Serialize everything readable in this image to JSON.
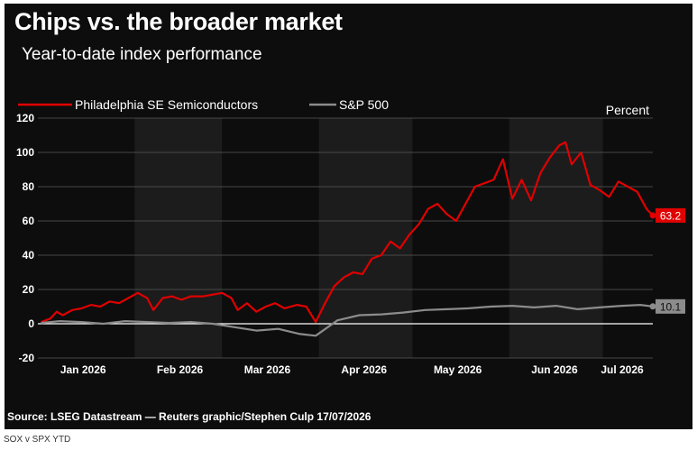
{
  "header": {
    "title": "Chips vs. the broader market",
    "subtitle": "Year-to-date index performance"
  },
  "footer": {
    "source": "Source: LSEG Datastream — Reuters graphic/Stephen Culp 17/07/2026",
    "caption": "SOX v SPX YTD"
  },
  "chart_data": {
    "type": "line",
    "title": "Chips vs. the broader market",
    "subtitle": "Year-to-date index performance",
    "unit_label": "Percent",
    "ylim": [
      -20,
      120
    ],
    "yticks": [
      -20,
      0,
      20,
      40,
      60,
      80,
      100,
      120
    ],
    "xlim": [
      "2026-01-01",
      "2026-07-17"
    ],
    "month_labels": [
      "Jan 2026",
      "Feb 2026",
      "Mar 2026",
      "Apr 2026",
      "May 2026",
      "Jun 2026",
      "Jul 2026"
    ],
    "legend_position": "top-left",
    "grid": true,
    "colors": {
      "background": "#0d0d0d",
      "band": "#1c1c1c",
      "grid": "#5a5a5a",
      "zero_line": "#ffffff",
      "text": "#ffffff"
    },
    "series": [
      {
        "name": "Philadelphia SE Semiconductors",
        "color": "#e00000",
        "end_label": "63.2",
        "points": [
          [
            "2026-01-02",
            1.0
          ],
          [
            "2026-01-05",
            3.0
          ],
          [
            "2026-01-07",
            7.0
          ],
          [
            "2026-01-09",
            5.0
          ],
          [
            "2026-01-12",
            8.0
          ],
          [
            "2026-01-15",
            9.0
          ],
          [
            "2026-01-18",
            11.0
          ],
          [
            "2026-01-21",
            10.0
          ],
          [
            "2026-01-24",
            13.0
          ],
          [
            "2026-01-27",
            12.0
          ],
          [
            "2026-01-30",
            15.0
          ],
          [
            "2026-02-02",
            18.0
          ],
          [
            "2026-02-05",
            15.0
          ],
          [
            "2026-02-07",
            8.0
          ],
          [
            "2026-02-10",
            15.0
          ],
          [
            "2026-02-13",
            16.0
          ],
          [
            "2026-02-16",
            14.0
          ],
          [
            "2026-02-19",
            16.0
          ],
          [
            "2026-02-23",
            16.0
          ],
          [
            "2026-02-26",
            17.0
          ],
          [
            "2026-03-01",
            18.0
          ],
          [
            "2026-03-04",
            15.0
          ],
          [
            "2026-03-06",
            8.0
          ],
          [
            "2026-03-09",
            12.0
          ],
          [
            "2026-03-12",
            7.0
          ],
          [
            "2026-03-15",
            10.0
          ],
          [
            "2026-03-18",
            12.0
          ],
          [
            "2026-03-21",
            9.0
          ],
          [
            "2026-03-25",
            11.0
          ],
          [
            "2026-03-28",
            10.0
          ],
          [
            "2026-03-31",
            1.0
          ],
          [
            "2026-04-03",
            12.0
          ],
          [
            "2026-04-06",
            22.0
          ],
          [
            "2026-04-09",
            27.0
          ],
          [
            "2026-04-12",
            30.0
          ],
          [
            "2026-04-15",
            29.0
          ],
          [
            "2026-04-18",
            38.0
          ],
          [
            "2026-04-21",
            40.0
          ],
          [
            "2026-04-24",
            48.0
          ],
          [
            "2026-04-27",
            44.0
          ],
          [
            "2026-04-30",
            52.0
          ],
          [
            "2026-05-03",
            58.0
          ],
          [
            "2026-05-06",
            67.0
          ],
          [
            "2026-05-09",
            70.0
          ],
          [
            "2026-05-12",
            64.0
          ],
          [
            "2026-05-15",
            60.0
          ],
          [
            "2026-05-18",
            70.0
          ],
          [
            "2026-05-21",
            80.0
          ],
          [
            "2026-05-24",
            82.0
          ],
          [
            "2026-05-27",
            84.0
          ],
          [
            "2026-05-30",
            96.0
          ],
          [
            "2026-06-02",
            73.0
          ],
          [
            "2026-06-05",
            84.0
          ],
          [
            "2026-06-08",
            72.0
          ],
          [
            "2026-06-11",
            88.0
          ],
          [
            "2026-06-14",
            97.0
          ],
          [
            "2026-06-17",
            104.0
          ],
          [
            "2026-06-19",
            106.0
          ],
          [
            "2026-06-21",
            93.0
          ],
          [
            "2026-06-24",
            100.0
          ],
          [
            "2026-06-27",
            81.0
          ],
          [
            "2026-06-30",
            78.0
          ],
          [
            "2026-07-03",
            74.0
          ],
          [
            "2026-07-06",
            83.0
          ],
          [
            "2026-07-09",
            80.0
          ],
          [
            "2026-07-12",
            77.0
          ],
          [
            "2026-07-15",
            67.0
          ],
          [
            "2026-07-17",
            63.2
          ]
        ]
      },
      {
        "name": "S&P 500",
        "color": "#8c8c8c",
        "end_label": "10.1",
        "points": [
          [
            "2026-01-02",
            0.5
          ],
          [
            "2026-01-08",
            1.5
          ],
          [
            "2026-01-15",
            1.0
          ],
          [
            "2026-01-22",
            0.0
          ],
          [
            "2026-01-29",
            1.5
          ],
          [
            "2026-02-05",
            1.0
          ],
          [
            "2026-02-12",
            0.5
          ],
          [
            "2026-02-19",
            1.0
          ],
          [
            "2026-02-26",
            0.0
          ],
          [
            "2026-03-05",
            -2.0
          ],
          [
            "2026-03-12",
            -4.0
          ],
          [
            "2026-03-19",
            -3.0
          ],
          [
            "2026-03-26",
            -6.0
          ],
          [
            "2026-03-31",
            -7.0
          ],
          [
            "2026-04-07",
            2.0
          ],
          [
            "2026-04-14",
            5.0
          ],
          [
            "2026-04-21",
            5.5
          ],
          [
            "2026-04-28",
            6.5
          ],
          [
            "2026-05-05",
            8.0
          ],
          [
            "2026-05-12",
            8.5
          ],
          [
            "2026-05-19",
            9.0
          ],
          [
            "2026-05-26",
            10.0
          ],
          [
            "2026-06-02",
            10.5
          ],
          [
            "2026-06-09",
            9.5
          ],
          [
            "2026-06-16",
            10.5
          ],
          [
            "2026-06-23",
            8.5
          ],
          [
            "2026-06-30",
            9.5
          ],
          [
            "2026-07-07",
            10.5
          ],
          [
            "2026-07-13",
            11.0
          ],
          [
            "2026-07-17",
            10.1
          ]
        ]
      }
    ]
  }
}
